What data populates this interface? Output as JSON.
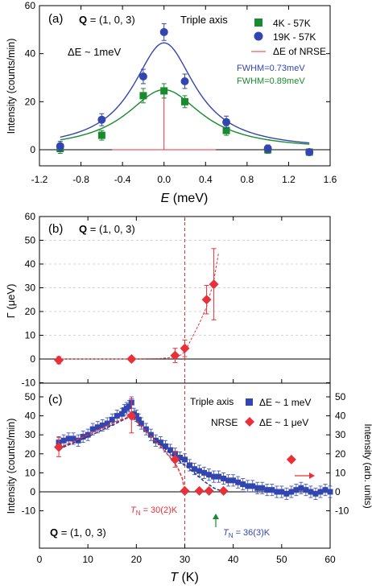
{
  "chart_data": [
    {
      "panel": "(a)",
      "type": "scatter",
      "xlabel": "E (meV)",
      "ylabel": "Intensity (counts/min)",
      "xlim": [
        -1.2,
        1.6
      ],
      "ylim": [
        -3,
        60
      ],
      "xticks": [
        -1.2,
        -0.8,
        -0.4,
        0.0,
        0.4,
        0.8,
        1.2,
        1.6
      ],
      "xtick_labels": [
        "-1.2",
        "-0.8",
        "-0.4",
        "0.0",
        "0.4",
        "0.8",
        "1.2",
        "1.6"
      ],
      "yticks": [
        0,
        20,
        40,
        60
      ],
      "annotations": {
        "q_bold": "Q",
        "q_value": " = (1, 0, 3)",
        "instrument": "Triple axis",
        "de": "ΔE ~ 1meV",
        "fwhm_blue": "FWHM=0.73meV",
        "fwhm_green": "FWHM=0.89meV"
      },
      "series": [
        {
          "name": "4K - 57K",
          "marker": "square",
          "color": "#1a8a2e",
          "x": [
            -1.0,
            -0.6,
            -0.2,
            0.0,
            0.2,
            0.6,
            1.0,
            1.4
          ],
          "y": [
            0.5,
            6,
            22.5,
            24.5,
            20,
            8,
            0,
            -1
          ],
          "err": [
            2,
            2,
            3,
            3,
            2.5,
            2,
            1.5,
            1
          ]
        },
        {
          "name": "19K - 57K",
          "marker": "circle",
          "color": "#3346b0",
          "x": [
            -1.0,
            -0.6,
            -0.2,
            0.0,
            0.2,
            0.6,
            1.0,
            1.4
          ],
          "y": [
            1.5,
            12.5,
            30.5,
            49,
            28.5,
            11.5,
            0.5,
            -1
          ],
          "err": [
            2,
            2.5,
            3,
            3.5,
            3,
            2.5,
            1.5,
            1
          ]
        },
        {
          "name": "ΔE of NRSE",
          "type": "line",
          "color": "#e8303a",
          "x": [
            -0.5,
            0.0,
            0.0,
            0.0,
            0.5
          ],
          "y": [
            0,
            0,
            25,
            0,
            0
          ]
        }
      ],
      "fits": [
        {
          "color": "#3346b0",
          "amplitude": 44.5,
          "center": 0.0,
          "fwhm": 0.73
        },
        {
          "color": "#1a8a2e",
          "amplitude": 25,
          "center": 0.0,
          "fwhm": 0.89
        }
      ]
    },
    {
      "panel": "(b)",
      "type": "scatter",
      "xlabel": "",
      "ylabel": "Γ (μeV)",
      "xlim": [
        0,
        60
      ],
      "ylim": [
        -10,
        60
      ],
      "yticks": [
        -10,
        0,
        10,
        20,
        30,
        40,
        50,
        60
      ],
      "annotations": {
        "q_bold": "Q",
        "q_value": " = (1, 0, 3)"
      },
      "vline": 30,
      "series": [
        {
          "name": "NRSE",
          "marker": "diamond",
          "color": "#e8303a",
          "x": [
            4,
            19,
            28,
            30,
            34.5,
            36
          ],
          "y": [
            -0.5,
            0,
            1.5,
            4.5,
            25,
            31.5
          ],
          "err": [
            1.5,
            1,
            3,
            3.5,
            6,
            15
          ]
        }
      ],
      "fit_curve": {
        "color": "#e8303a",
        "x": [
          4,
          10,
          19,
          25,
          28,
          29.5,
          30.5,
          31.5,
          33,
          34.5,
          36,
          37
        ],
        "y": [
          0,
          0,
          0,
          0.2,
          0.8,
          2,
          5,
          9,
          15,
          22,
          33,
          45
        ]
      }
    },
    {
      "panel": "(c)",
      "type": "scatter",
      "xlabel": "T (K)",
      "ylabel": "Intensity (counts/min)",
      "ylabel_right": "Intensity (arb. units)",
      "xlim": [
        0,
        60
      ],
      "ylim": [
        -15,
        55
      ],
      "xticks": [
        0,
        10,
        20,
        30,
        40,
        50,
        60
      ],
      "yticks": [
        -10,
        0,
        10,
        20,
        30,
        40,
        50
      ],
      "annotations": {
        "q_bold": "Q",
        "q_value": " = (1, 0, 3)",
        "tn_red": "T_N = 30(2)K",
        "tn_blue": "T_N = 36(3)K",
        "legend_row1_label": "Triple axis",
        "legend_row1_de": "ΔE ~ 1 meV",
        "legend_row2_label": "NRSE",
        "legend_row2_de": "ΔE ~ 1 μeV",
        "arrow_right": "→"
      },
      "vline": 30,
      "series": [
        {
          "name": "Triple axis",
          "marker": "square",
          "color": "#3346b0",
          "x": [
            4,
            5,
            6,
            7,
            8,
            9,
            10,
            11,
            12,
            13,
            14,
            15,
            16,
            17,
            17.5,
            18,
            18.5,
            19,
            19.5,
            20,
            20.5,
            21,
            22,
            23,
            24,
            25,
            26,
            27,
            28,
            29,
            30,
            31,
            32,
            33,
            34,
            35,
            36,
            37,
            38,
            39,
            40,
            41,
            42,
            43,
            44,
            45,
            46,
            47,
            48,
            49,
            50,
            51,
            52,
            53,
            54,
            55,
            56,
            57,
            58,
            59,
            60
          ],
          "y": [
            26,
            27,
            28,
            28,
            27,
            29,
            30,
            33,
            34,
            35,
            36,
            38,
            40,
            41,
            43,
            44,
            45,
            47,
            41,
            40,
            38,
            36,
            33,
            30,
            27,
            26,
            24,
            22,
            20,
            18,
            17,
            14,
            12,
            11,
            10,
            9,
            8,
            8,
            7,
            6,
            6,
            5,
            4,
            3,
            3,
            2,
            2,
            1,
            1,
            0,
            0,
            -1,
            0,
            1,
            2,
            1,
            0,
            -1,
            0,
            1,
            0
          ],
          "err": [
            3,
            3,
            3,
            3,
            3,
            3,
            3,
            3,
            3,
            3,
            3,
            3,
            3,
            3,
            3,
            3,
            3,
            3,
            3,
            3,
            3,
            3,
            3,
            3,
            3,
            3,
            3,
            3,
            3,
            3,
            3,
            3,
            3,
            3,
            3,
            3,
            3,
            3,
            3,
            3,
            3,
            3,
            3,
            3,
            3,
            3,
            3,
            3,
            3,
            3,
            3,
            3,
            3,
            3,
            3,
            3,
            3,
            3,
            3,
            3,
            3
          ]
        },
        {
          "name": "NRSE",
          "marker": "diamond",
          "color": "#e8303a",
          "x": [
            4,
            19,
            28,
            30,
            33,
            35,
            38,
            52
          ],
          "y": [
            23.5,
            40,
            17,
            0.5,
            0.5,
            0.5,
            0.5,
            17
          ],
          "err": [
            5,
            9,
            4,
            1,
            1,
            1,
            1,
            0
          ]
        }
      ],
      "fit_red": {
        "color": "#e8303a",
        "x": [
          4,
          10,
          15,
          19,
          22,
          25,
          27,
          28.5,
          29.5,
          30
        ],
        "y": [
          23,
          30,
          36,
          40,
          32,
          24,
          18,
          13,
          7,
          0
        ]
      },
      "fit_blue": {
        "color": "#233a8c",
        "x": [
          4,
          10,
          15,
          19,
          22,
          25,
          28,
          30,
          32,
          34,
          36,
          38
        ],
        "y": [
          22.5,
          29,
          35,
          40,
          32,
          25,
          18,
          14,
          10,
          5.5,
          2,
          0
        ]
      },
      "markers": {
        "tn_red_x": 30,
        "tn_blue_x": 36
      }
    }
  ]
}
